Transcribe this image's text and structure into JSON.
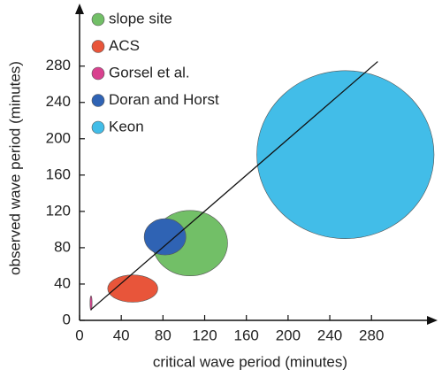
{
  "chart_data": {
    "type": "ellipse",
    "x_label": "critical wave period (minutes)",
    "y_label": "observed wave period (minutes)",
    "xlim": [
      0,
      340
    ],
    "ylim": [
      0,
      345
    ],
    "xticks": [
      0,
      40,
      80,
      120,
      160,
      200,
      240,
      280
    ],
    "yticks": [
      0,
      40,
      80,
      120,
      160,
      200,
      240,
      280
    ],
    "legend": "upper left",
    "reference_line": {
      "x": [
        11,
        286
      ],
      "y": [
        12,
        285
      ]
    },
    "series": [
      {
        "name": "slope site",
        "color": "#72bf67",
        "x_range": [
          70,
          142
        ],
        "y_range": [
          49,
          121
        ]
      },
      {
        "name": "ACS",
        "color": "#e8553a",
        "x_range": [
          27,
          75
        ],
        "y_range": [
          20,
          50
        ]
      },
      {
        "name": "Gorsel et al.",
        "color": "#d9418f",
        "x_range": [
          10,
          12
        ],
        "y_range": [
          11,
          27
        ]
      },
      {
        "name": "Doran and Horst",
        "color": "#2f63b4",
        "x_range": [
          62,
          102
        ],
        "y_range": [
          72,
          112
        ]
      },
      {
        "name": "Keon",
        "color": "#42bde8",
        "x_range": [
          170,
          340
        ],
        "y_range": [
          90,
          275
        ]
      }
    ]
  }
}
